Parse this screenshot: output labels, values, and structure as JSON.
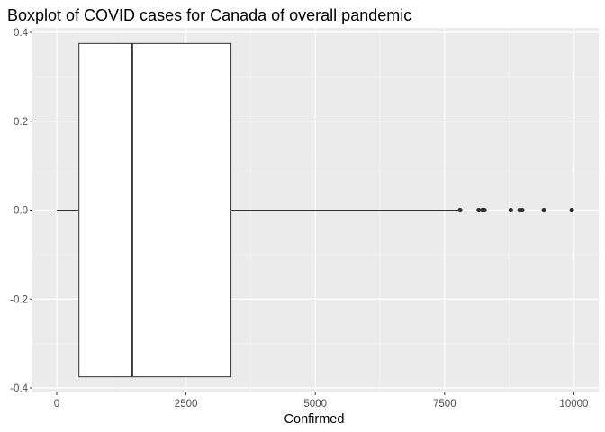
{
  "chart_data": {
    "type": "boxplot",
    "title": "Boxplot of COVID cases for Canada of overall pandemic",
    "xlabel": "Confirmed",
    "ylabel": "",
    "xlim": [
      -470,
      10480
    ],
    "ylim": [
      -0.4,
      0.4
    ],
    "x_ticks": [
      0,
      2500,
      5000,
      7500,
      10000
    ],
    "y_ticks": [
      -0.4,
      -0.2,
      0.0,
      0.2,
      0.4
    ],
    "x_tick_labels": [
      "0",
      "2500",
      "5000",
      "7500",
      "10000"
    ],
    "y_tick_labels": [
      "-0.4",
      "-0.2",
      "0.0",
      "0.2",
      "0.4"
    ],
    "box": {
      "y_center": 0.0,
      "y_half_height": 0.375,
      "whisker_low": 0,
      "q1": 430,
      "median": 1460,
      "q3": 3370,
      "whisker_high": 7780
    },
    "outliers": [
      7800,
      8160,
      8230,
      8270,
      8780,
      8950,
      9000,
      9420,
      9960
    ],
    "grid": true,
    "background": "#ebebeb",
    "grid_major_color": "#ffffff",
    "box_fill": "#ffffff",
    "line_color": "#333333",
    "point_color": "#333333"
  }
}
